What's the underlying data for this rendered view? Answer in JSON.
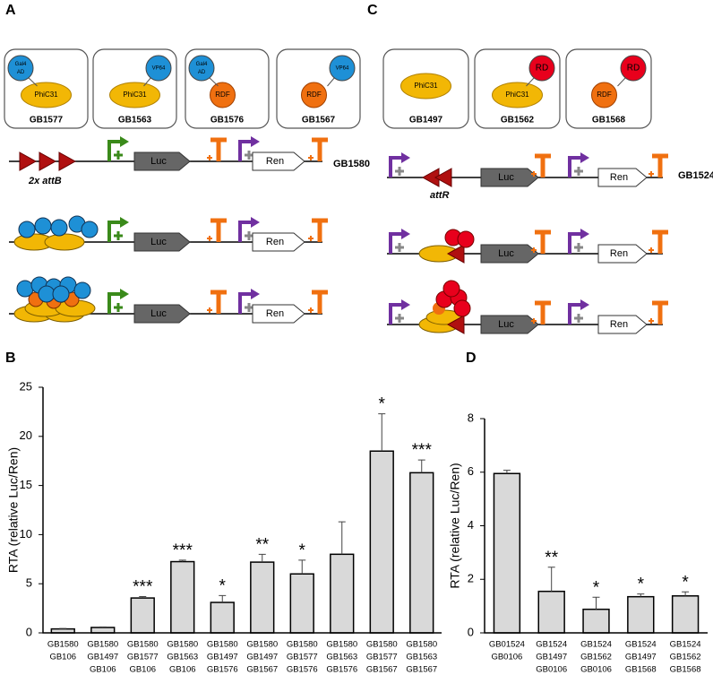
{
  "panels": {
    "a": "A",
    "b": "B",
    "c": "C",
    "d": "D"
  },
  "diagram_a": {
    "boxes": [
      {
        "top": [
          "Gal4",
          "AD"
        ],
        "bottom": "PhiC31",
        "name": "GB1577"
      },
      {
        "top": [
          "VP64"
        ],
        "bottom": "PhiC31",
        "name": "GB1563"
      },
      {
        "top": [
          "Gal4",
          "AD"
        ],
        "bottom": "RDF",
        "name": "GB1576"
      },
      {
        "top": [
          "VP64"
        ],
        "bottom": "RDF",
        "name": "GB1567"
      }
    ],
    "site": "2x attB",
    "luc": "Luc",
    "ren": "Ren",
    "reporter": "GB1580"
  },
  "diagram_c": {
    "boxes": [
      {
        "bottom": "PhiC31",
        "name": "GB1497"
      },
      {
        "top": [
          "RD"
        ],
        "bottom": "PhiC31",
        "name": "GB1562"
      },
      {
        "top": [
          "RD"
        ],
        "bottom": "RDF",
        "name": "GB1568"
      }
    ],
    "site": "attR",
    "luc": "Luc",
    "ren": "Ren",
    "reporter": "GB1524"
  },
  "chart_data": [
    {
      "type": "bar",
      "y_label": "RTA (relative Luc/Ren)",
      "categories": [
        [
          "GB1580",
          "GB106"
        ],
        [
          "GB1580",
          "GB1497",
          "GB106"
        ],
        [
          "GB1580",
          "GB1577",
          "GB106"
        ],
        [
          "GB1580",
          "GB1563",
          "GB106"
        ],
        [
          "GB1580",
          "GB1497",
          "GB1576"
        ],
        [
          "GB1580",
          "GB1497",
          "GB1567"
        ],
        [
          "GB1580",
          "GB1577",
          "GB1576"
        ],
        [
          "GB1580",
          "GB1563",
          "GB1576"
        ],
        [
          "GB1580",
          "GB1577",
          "GB1567"
        ],
        [
          "GB1580",
          "GB1563",
          "GB1567"
        ]
      ],
      "values": [
        0.4,
        0.55,
        3.55,
        7.25,
        3.1,
        7.2,
        6.0,
        8.0,
        18.5,
        16.3
      ],
      "errors": [
        0.05,
        0.05,
        0.15,
        0.15,
        0.7,
        0.8,
        1.4,
        3.3,
        3.8,
        1.3
      ],
      "annotations": [
        null,
        null,
        "***",
        "***",
        "*",
        "**",
        "*",
        null,
        "*",
        "***"
      ],
      "color": "#d9d9d9",
      "ylim": [
        0,
        25
      ],
      "yticks": [
        0,
        5,
        10,
        15,
        20,
        25
      ]
    },
    {
      "type": "bar",
      "y_label": "RTA (relative Luc/Ren)",
      "categories": [
        [
          "GB01524",
          "GB0106"
        ],
        [
          "GB1524",
          "GB1497",
          "GB0106"
        ],
        [
          "GB1524",
          "GB1562",
          "GB0106"
        ],
        [
          "GB1524",
          "GB1497",
          "GB1568"
        ],
        [
          "GB1524",
          "GB1562",
          "GB1568"
        ]
      ],
      "values": [
        5.95,
        1.55,
        0.88,
        1.35,
        1.38
      ],
      "errors": [
        0.12,
        0.9,
        0.45,
        0.1,
        0.15
      ],
      "annotations": [
        null,
        "**",
        "*",
        "*",
        "*"
      ],
      "color": "#d9d9d9",
      "ylim": [
        0,
        8
      ],
      "yticks": [
        0,
        2,
        4,
        6,
        8
      ]
    }
  ]
}
